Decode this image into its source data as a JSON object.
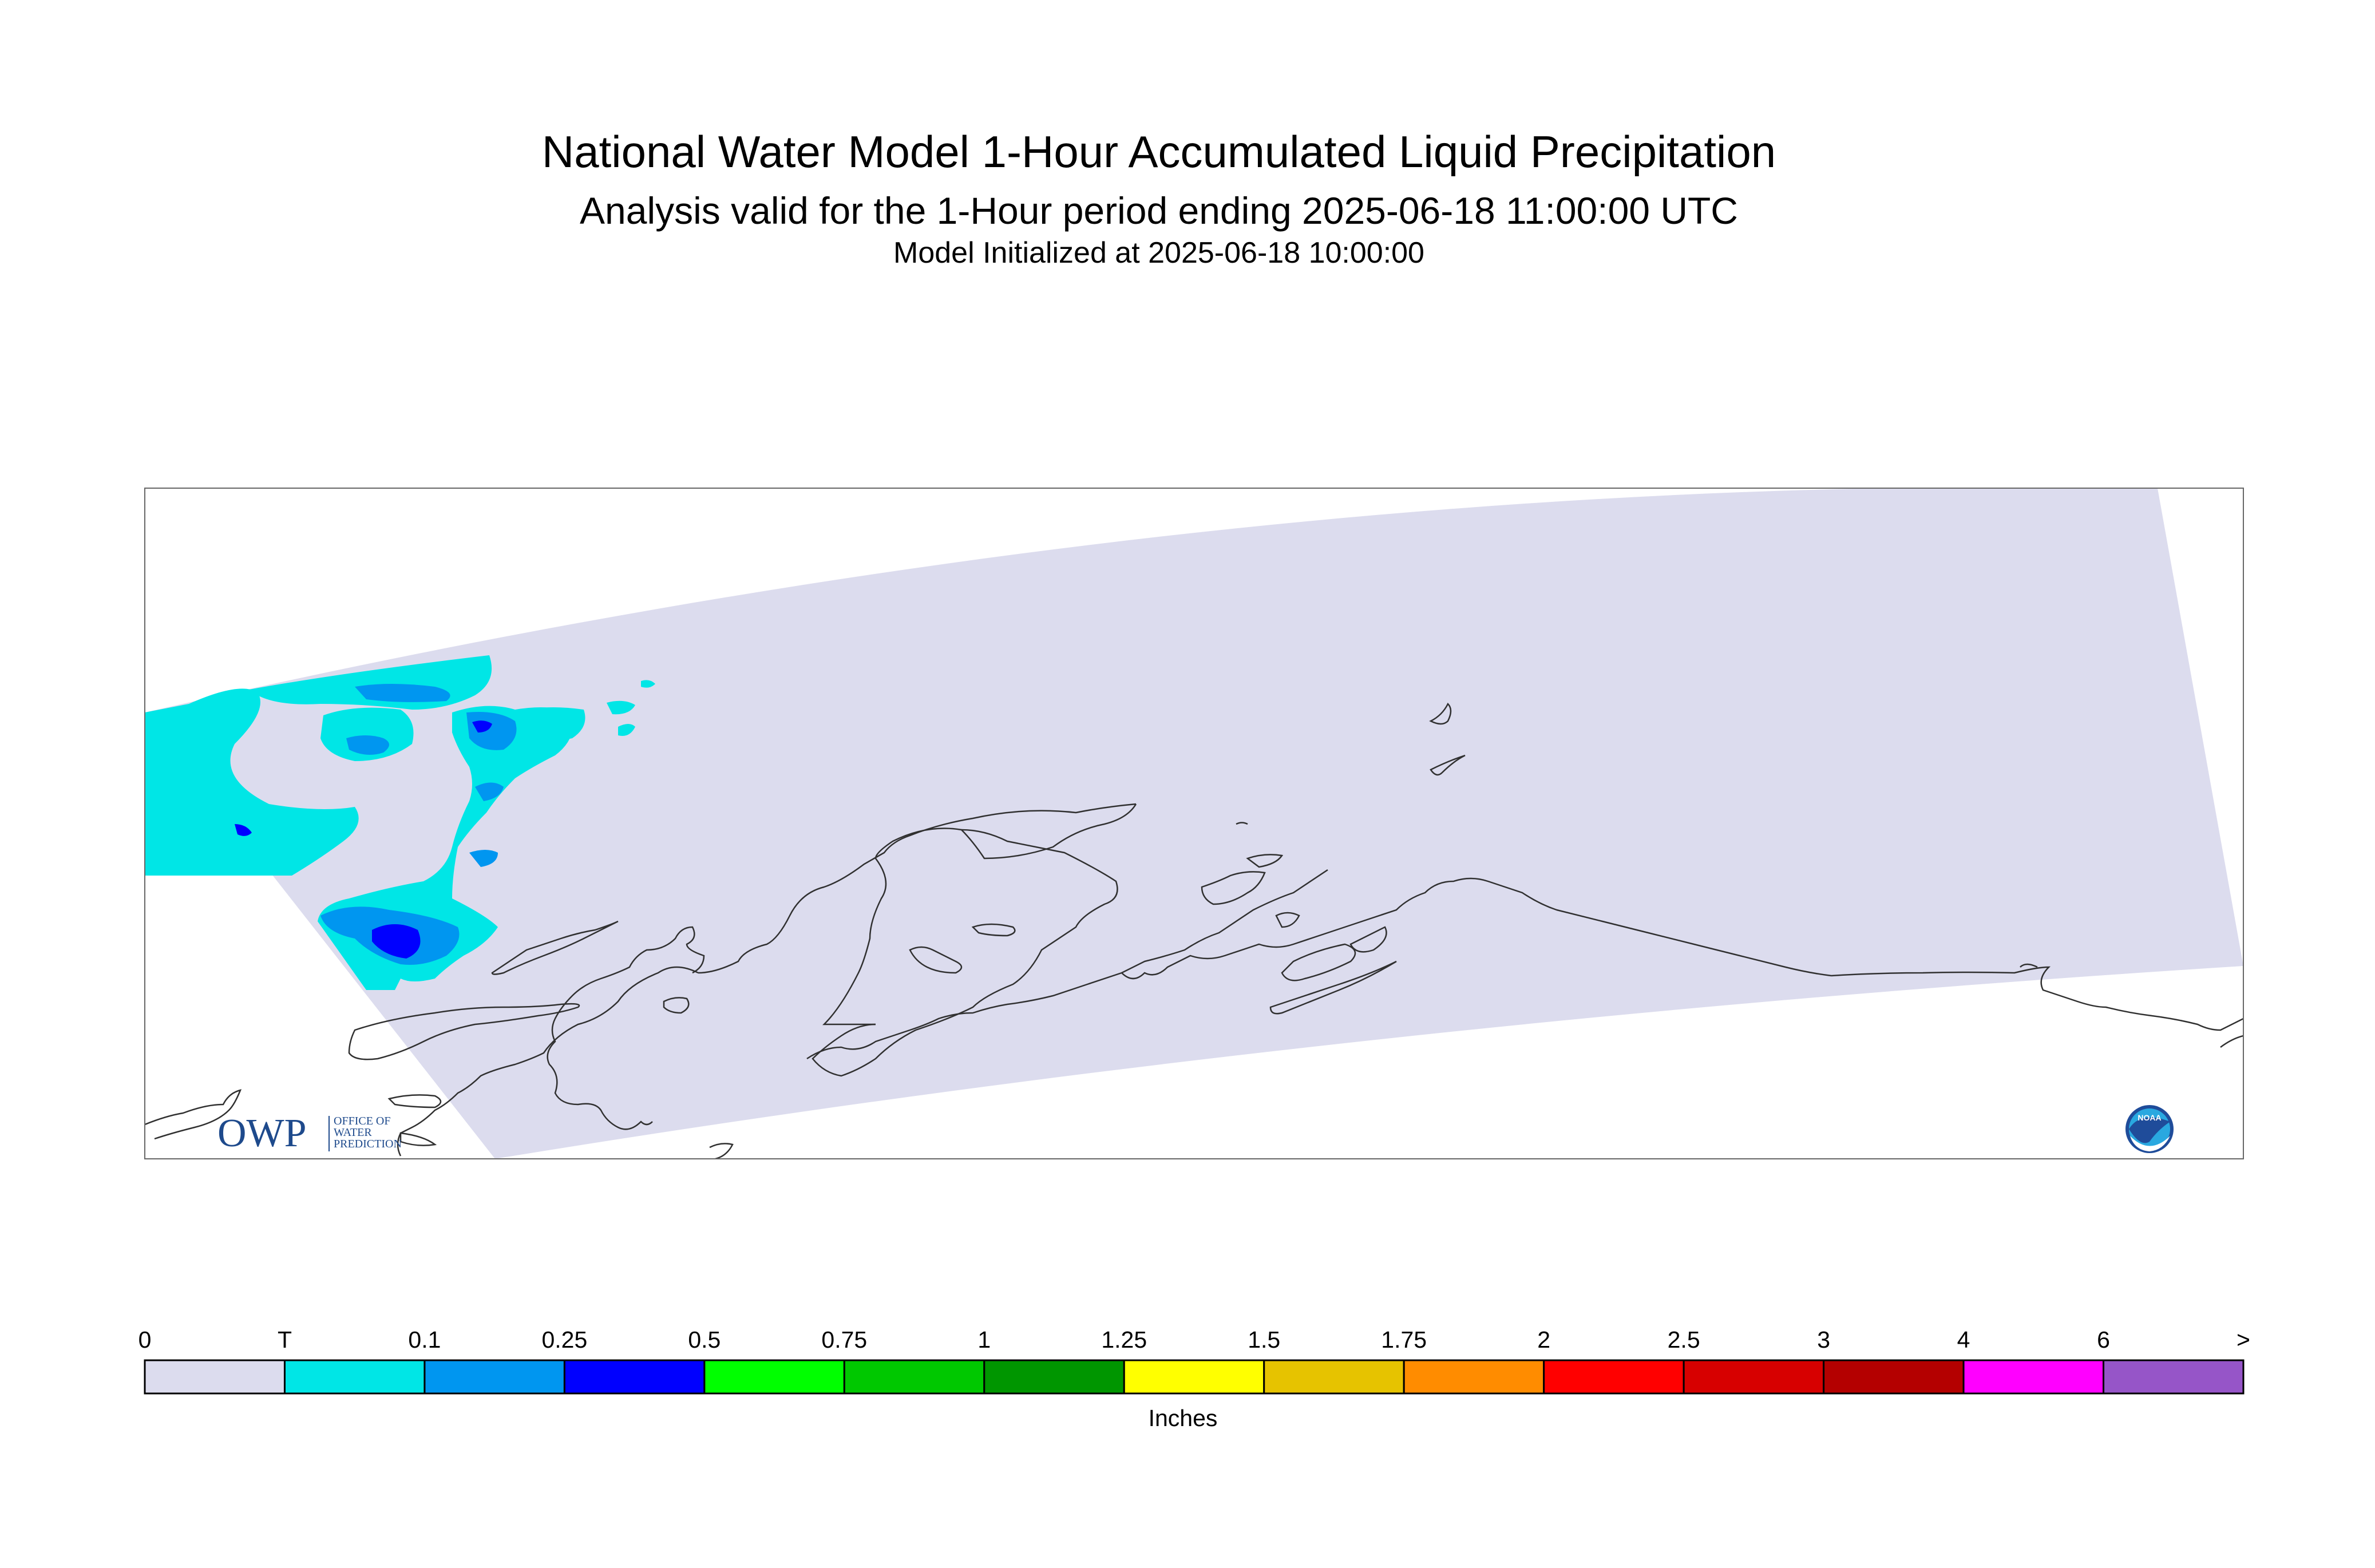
{
  "header": {
    "title": "National Water Model 1-Hour Accumulated Liquid Precipitation",
    "subtitle": "Analysis valid for the 1-Hour period ending 2025-06-18 11:00:00 UTC",
    "init": "Model Initialized at 2025-06-18 10:00:00"
  },
  "map": {
    "domain_color": "#dcdcee",
    "coast_color": "#303030",
    "precip_colors": {
      "trace": "#00e6e6",
      "light": "#0096f0",
      "moderate": "#0000ff"
    }
  },
  "logos": {
    "owp_text": "OWP",
    "owp_line1": "OFFICE OF",
    "owp_line2": "WATER",
    "owp_line3": "PREDICTION",
    "noaa_text": "NOAA"
  },
  "legend": {
    "units": "Inches",
    "labels": [
      "0",
      "T",
      "0.1",
      "0.25",
      "0.5",
      "0.75",
      "1",
      "1.25",
      "1.5",
      "1.75",
      "2",
      "2.5",
      "3",
      "4",
      "6",
      ">"
    ],
    "colors": [
      "#dcdcee",
      "#00e6e6",
      "#0096f0",
      "#0000ff",
      "#00ff00",
      "#00c800",
      "#009600",
      "#ffff00",
      "#e6c300",
      "#ff8c00",
      "#ff0000",
      "#d70000",
      "#b40000",
      "#ff00ff",
      "#9655c8"
    ]
  }
}
